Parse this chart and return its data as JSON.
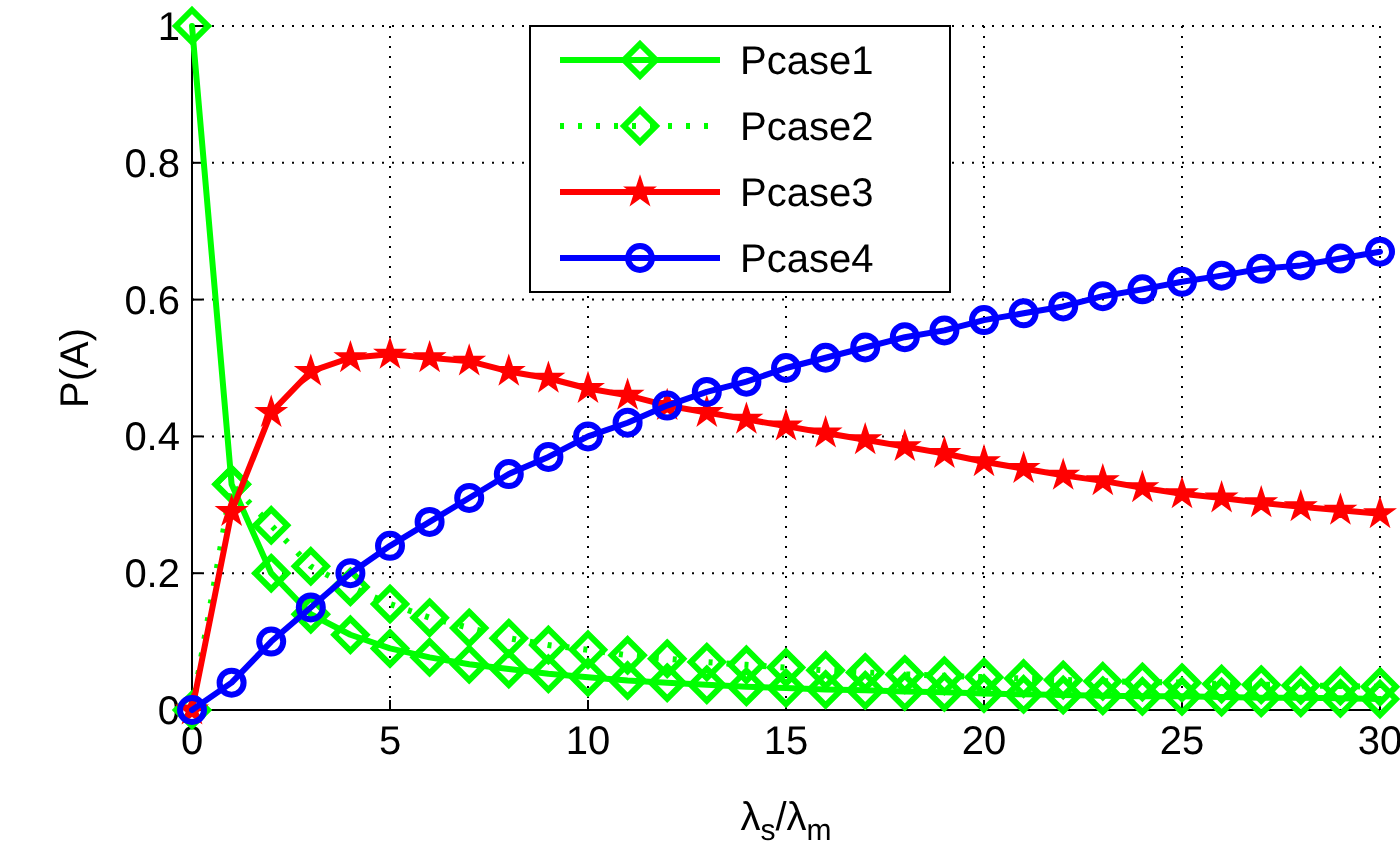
{
  "chart_data": {
    "type": "line",
    "xlabel": "λ$_{s}$/λ$_{m}$",
    "ylabel": "P(A)",
    "x": [
      0,
      1,
      2,
      3,
      4,
      5,
      6,
      7,
      8,
      9,
      10,
      11,
      12,
      13,
      14,
      15,
      16,
      17,
      18,
      19,
      20,
      21,
      22,
      23,
      24,
      25,
      26,
      27,
      28,
      29,
      30
    ],
    "xlim": [
      0,
      30
    ],
    "xticks": [
      0,
      5,
      10,
      15,
      20,
      25,
      30
    ],
    "ylim": [
      0,
      1
    ],
    "yticks": [
      0,
      0.2,
      0.4,
      0.6,
      0.8,
      1
    ],
    "grid": true,
    "legend": "top",
    "series": [
      {
        "name": "Pcase1",
        "color": "#00ff00",
        "marker": "diamond",
        "line_style": "solid",
        "values": [
          1,
          0.33,
          0.2,
          0.14,
          0.11,
          0.09,
          0.077,
          0.067,
          0.06,
          0.053,
          0.048,
          0.043,
          0.04,
          0.037,
          0.034,
          0.032,
          0.03,
          0.029,
          0.027,
          0.026,
          0.024,
          0.023,
          0.022,
          0.021,
          0.02,
          0.02,
          0.019,
          0.018,
          0.018,
          0.017,
          0.016
        ]
      },
      {
        "name": "Pcase2",
        "color": "#00ff00",
        "marker": "diamond",
        "line_style": "dotted",
        "values": [
          0,
          0.33,
          0.27,
          0.21,
          0.18,
          0.155,
          0.135,
          0.12,
          0.105,
          0.095,
          0.088,
          0.08,
          0.075,
          0.07,
          0.066,
          0.062,
          0.058,
          0.055,
          0.052,
          0.05,
          0.048,
          0.046,
          0.044,
          0.042,
          0.041,
          0.04,
          0.038,
          0.037,
          0.036,
          0.035,
          0.034
        ]
      },
      {
        "name": "Pcase3",
        "color": "#ff0000",
        "marker": "star",
        "line_style": "solid",
        "values": [
          0,
          0.29,
          0.435,
          0.495,
          0.515,
          0.52,
          0.515,
          0.51,
          0.495,
          0.485,
          0.47,
          0.46,
          0.445,
          0.435,
          0.425,
          0.415,
          0.405,
          0.395,
          0.385,
          0.375,
          0.363,
          0.353,
          0.343,
          0.335,
          0.325,
          0.316,
          0.31,
          0.303,
          0.297,
          0.292,
          0.287
        ]
      },
      {
        "name": "Pcase4",
        "color": "#0000ff",
        "marker": "circle",
        "line_style": "solid",
        "values": [
          0,
          0.04,
          0.1,
          0.15,
          0.2,
          0.24,
          0.275,
          0.31,
          0.345,
          0.37,
          0.4,
          0.42,
          0.445,
          0.465,
          0.48,
          0.5,
          0.515,
          0.53,
          0.545,
          0.555,
          0.57,
          0.58,
          0.59,
          0.605,
          0.615,
          0.626,
          0.635,
          0.645,
          0.65,
          0.66,
          0.67
        ]
      }
    ]
  }
}
